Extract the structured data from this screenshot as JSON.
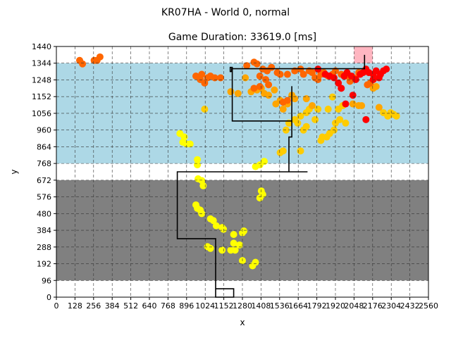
{
  "chart_data": {
    "type": "scatter",
    "suptitle": "KR07HA - World 0, normal",
    "title": "Game Duration: 33619.0 [ms]",
    "xlabel": "x",
    "ylabel": "y",
    "xlim": [
      0,
      2560
    ],
    "ylim": [
      0,
      1440
    ],
    "xticks": [
      0,
      128,
      256,
      384,
      512,
      640,
      768,
      896,
      1024,
      1152,
      1280,
      1408,
      1536,
      1664,
      1792,
      1920,
      2048,
      2176,
      2304,
      2432,
      2560
    ],
    "xtick_labels": [
      "0",
      "128",
      "256",
      "384",
      "512",
      "640",
      "768",
      "896",
      "1024",
      "1152",
      "1280",
      "1408",
      "1536",
      "1664",
      "1792",
      "1920",
      "2048",
      "2176",
      "2304",
      "2432",
      "2560"
    ],
    "yticks": [
      0,
      96,
      192,
      288,
      384,
      480,
      576,
      672,
      768,
      864,
      960,
      1056,
      1152,
      1248,
      1344,
      1440
    ],
    "ytick_labels": [
      "0",
      "96",
      "192",
      "288",
      "384",
      "480",
      "576",
      "672",
      "768",
      "864",
      "960",
      "1056",
      "1152",
      "1248",
      "1344",
      "1440"
    ],
    "grid": true,
    "grid_style": "dashed",
    "regions": [
      {
        "name": "lightblue-zone",
        "x": [
          0,
          2560
        ],
        "y": [
          768,
          1344
        ],
        "color": "#add8e6"
      },
      {
        "name": "gray-zone",
        "x": [
          0,
          2560
        ],
        "y": [
          96,
          672
        ],
        "color": "#808080"
      },
      {
        "name": "pink-goal",
        "x": [
          2048,
          2176
        ],
        "y": [
          1344,
          1440
        ],
        "color": "#ffb6c1"
      }
    ],
    "path": {
      "color": "#000000",
      "points": [
        [
          1096,
          48
        ],
        [
          1220,
          48
        ],
        [
          1220,
          0
        ],
        [
          1096,
          0
        ],
        [
          1096,
          336
        ],
        [
          832,
          336
        ],
        [
          832,
          720
        ],
        [
          1728,
          720
        ],
        [
          1728,
          720
        ],
        [
          1600,
          720
        ],
        [
          1600,
          864
        ],
        [
          1600,
          920
        ],
        [
          1620,
          920
        ],
        [
          1620,
          1000
        ],
        [
          1620,
          1212
        ],
        [
          1620,
          1012
        ],
        [
          1210,
          1012
        ],
        [
          1210,
          1192
        ],
        [
          1210,
          1320
        ],
        [
          1196,
          1320
        ],
        [
          1196,
          1296
        ],
        [
          1206,
          1296
        ],
        [
          1206,
          1312
        ],
        [
          1496,
          1312
        ],
        [
          2120,
          1312
        ],
        [
          2120,
          1392
        ]
      ],
      "simplified": true
    },
    "series": [
      {
        "color": "#ffff00",
        "points": [
          [
            850,
            940
          ],
          [
            880,
            920
          ],
          [
            870,
            890
          ],
          [
            895,
            880
          ],
          [
            920,
            880
          ],
          [
            970,
            790
          ],
          [
            970,
            760
          ],
          [
            975,
            680
          ],
          [
            1000,
            670
          ],
          [
            1010,
            640
          ],
          [
            960,
            530
          ],
          [
            990,
            500
          ],
          [
            1000,
            480
          ],
          [
            970,
            510
          ],
          [
            1060,
            450
          ],
          [
            1080,
            440
          ],
          [
            1100,
            410
          ],
          [
            1150,
            390
          ],
          [
            1140,
            400
          ],
          [
            1040,
            290
          ],
          [
            1060,
            280
          ],
          [
            1220,
            360
          ],
          [
            1220,
            310
          ],
          [
            1260,
            300
          ],
          [
            1200,
            270
          ],
          [
            1230,
            270
          ],
          [
            1280,
            370
          ],
          [
            1290,
            380
          ],
          [
            1280,
            210
          ],
          [
            1370,
            200
          ],
          [
            1350,
            180
          ],
          [
            1400,
            570
          ],
          [
            1410,
            610
          ],
          [
            1420,
            590
          ],
          [
            1400,
            760
          ],
          [
            1430,
            780
          ],
          [
            1370,
            750
          ],
          [
            1140,
            270
          ]
        ]
      },
      {
        "color": "#ffcc00",
        "points": [
          [
            1020,
            1080
          ],
          [
            1540,
            830
          ],
          [
            1560,
            840
          ],
          [
            1580,
            960
          ],
          [
            1600,
            1000
          ],
          [
            1640,
            1020
          ],
          [
            1660,
            1000
          ],
          [
            1680,
            1040
          ],
          [
            1680,
            840
          ],
          [
            1700,
            960
          ],
          [
            1720,
            980
          ],
          [
            1720,
            1060
          ],
          [
            1740,
            1080
          ],
          [
            1780,
            1020
          ],
          [
            1800,
            1080
          ],
          [
            1820,
            900
          ],
          [
            1830,
            920
          ],
          [
            1860,
            920
          ],
          [
            1880,
            940
          ],
          [
            1910,
            960
          ],
          [
            1920,
            1000
          ],
          [
            1950,
            1020
          ],
          [
            1970,
            1100
          ],
          [
            1990,
            1000
          ],
          [
            1900,
            1150
          ],
          [
            2300,
            1060
          ],
          [
            2320,
            1050
          ],
          [
            2340,
            1040
          ],
          [
            2280,
            1040
          ],
          [
            2250,
            1060
          ],
          [
            1870,
            1080
          ],
          [
            1940,
            1080
          ]
        ]
      },
      {
        "color": "#ffa500",
        "points": [
          [
            1250,
            1170
          ],
          [
            1300,
            1260
          ],
          [
            1340,
            1180
          ],
          [
            1380,
            1190
          ],
          [
            1410,
            1200
          ],
          [
            1430,
            1170
          ],
          [
            1460,
            1160
          ],
          [
            1500,
            1190
          ],
          [
            1510,
            1110
          ],
          [
            1540,
            1130
          ],
          [
            1560,
            1080
          ],
          [
            1590,
            1110
          ],
          [
            1620,
            1160
          ],
          [
            1640,
            1140
          ],
          [
            1720,
            1140
          ],
          [
            1760,
            1100
          ],
          [
            2040,
            1110
          ],
          [
            2080,
            1100
          ],
          [
            2100,
            1100
          ],
          [
            2220,
            1090
          ],
          [
            2180,
            1200
          ],
          [
            2200,
            1210
          ],
          [
            1200,
            1180
          ]
        ]
      },
      {
        "color": "#ff6600",
        "points": [
          [
            160,
            1360
          ],
          [
            180,
            1340
          ],
          [
            260,
            1360
          ],
          [
            280,
            1360
          ],
          [
            300,
            1380
          ],
          [
            960,
            1270
          ],
          [
            990,
            1250
          ],
          [
            1000,
            1280
          ],
          [
            1020,
            1230
          ],
          [
            1040,
            1260
          ],
          [
            1060,
            1270
          ],
          [
            1090,
            1260
          ],
          [
            1130,
            1260
          ],
          [
            1310,
            1330
          ],
          [
            1360,
            1350
          ],
          [
            1380,
            1340
          ],
          [
            1420,
            1310
          ],
          [
            1450,
            1300
          ],
          [
            1480,
            1320
          ],
          [
            1400,
            1270
          ],
          [
            1440,
            1250
          ],
          [
            1460,
            1220
          ],
          [
            1400,
            1210
          ],
          [
            1520,
            1290
          ],
          [
            1540,
            1280
          ],
          [
            1590,
            1280
          ],
          [
            1640,
            1300
          ],
          [
            1680,
            1310
          ],
          [
            1700,
            1280
          ],
          [
            1740,
            1300
          ],
          [
            1760,
            1290
          ],
          [
            1780,
            1260
          ],
          [
            1800,
            1250
          ],
          [
            1820,
            1280
          ],
          [
            1840,
            1290
          ],
          [
            1870,
            1270
          ],
          [
            1900,
            1280
          ],
          [
            1920,
            1300
          ],
          [
            1960,
            1280
          ],
          [
            1990,
            1270
          ],
          [
            2020,
            1240
          ],
          [
            2050,
            1260
          ],
          [
            2080,
            1290
          ],
          [
            2140,
            1220
          ],
          [
            2160,
            1230
          ],
          [
            1560,
            1120
          ],
          [
            1590,
            1130
          ],
          [
            1360,
            1200
          ]
        ]
      },
      {
        "color": "#ff0000",
        "points": [
          [
            1800,
            1310
          ],
          [
            1850,
            1280
          ],
          [
            1880,
            1270
          ],
          [
            1910,
            1260
          ],
          [
            1940,
            1230
          ],
          [
            1960,
            1200
          ],
          [
            1980,
            1270
          ],
          [
            2000,
            1290
          ],
          [
            2030,
            1270
          ],
          [
            2060,
            1250
          ],
          [
            2090,
            1280
          ],
          [
            2110,
            1290
          ],
          [
            2130,
            1310
          ],
          [
            2150,
            1290
          ],
          [
            2180,
            1280
          ],
          [
            2200,
            1300
          ],
          [
            2220,
            1260
          ],
          [
            2230,
            1280
          ],
          [
            2250,
            1300
          ],
          [
            2270,
            1310
          ],
          [
            2180,
            1250
          ],
          [
            1990,
            1110
          ],
          [
            2040,
            1160
          ],
          [
            2130,
            1020
          ]
        ]
      }
    ]
  }
}
